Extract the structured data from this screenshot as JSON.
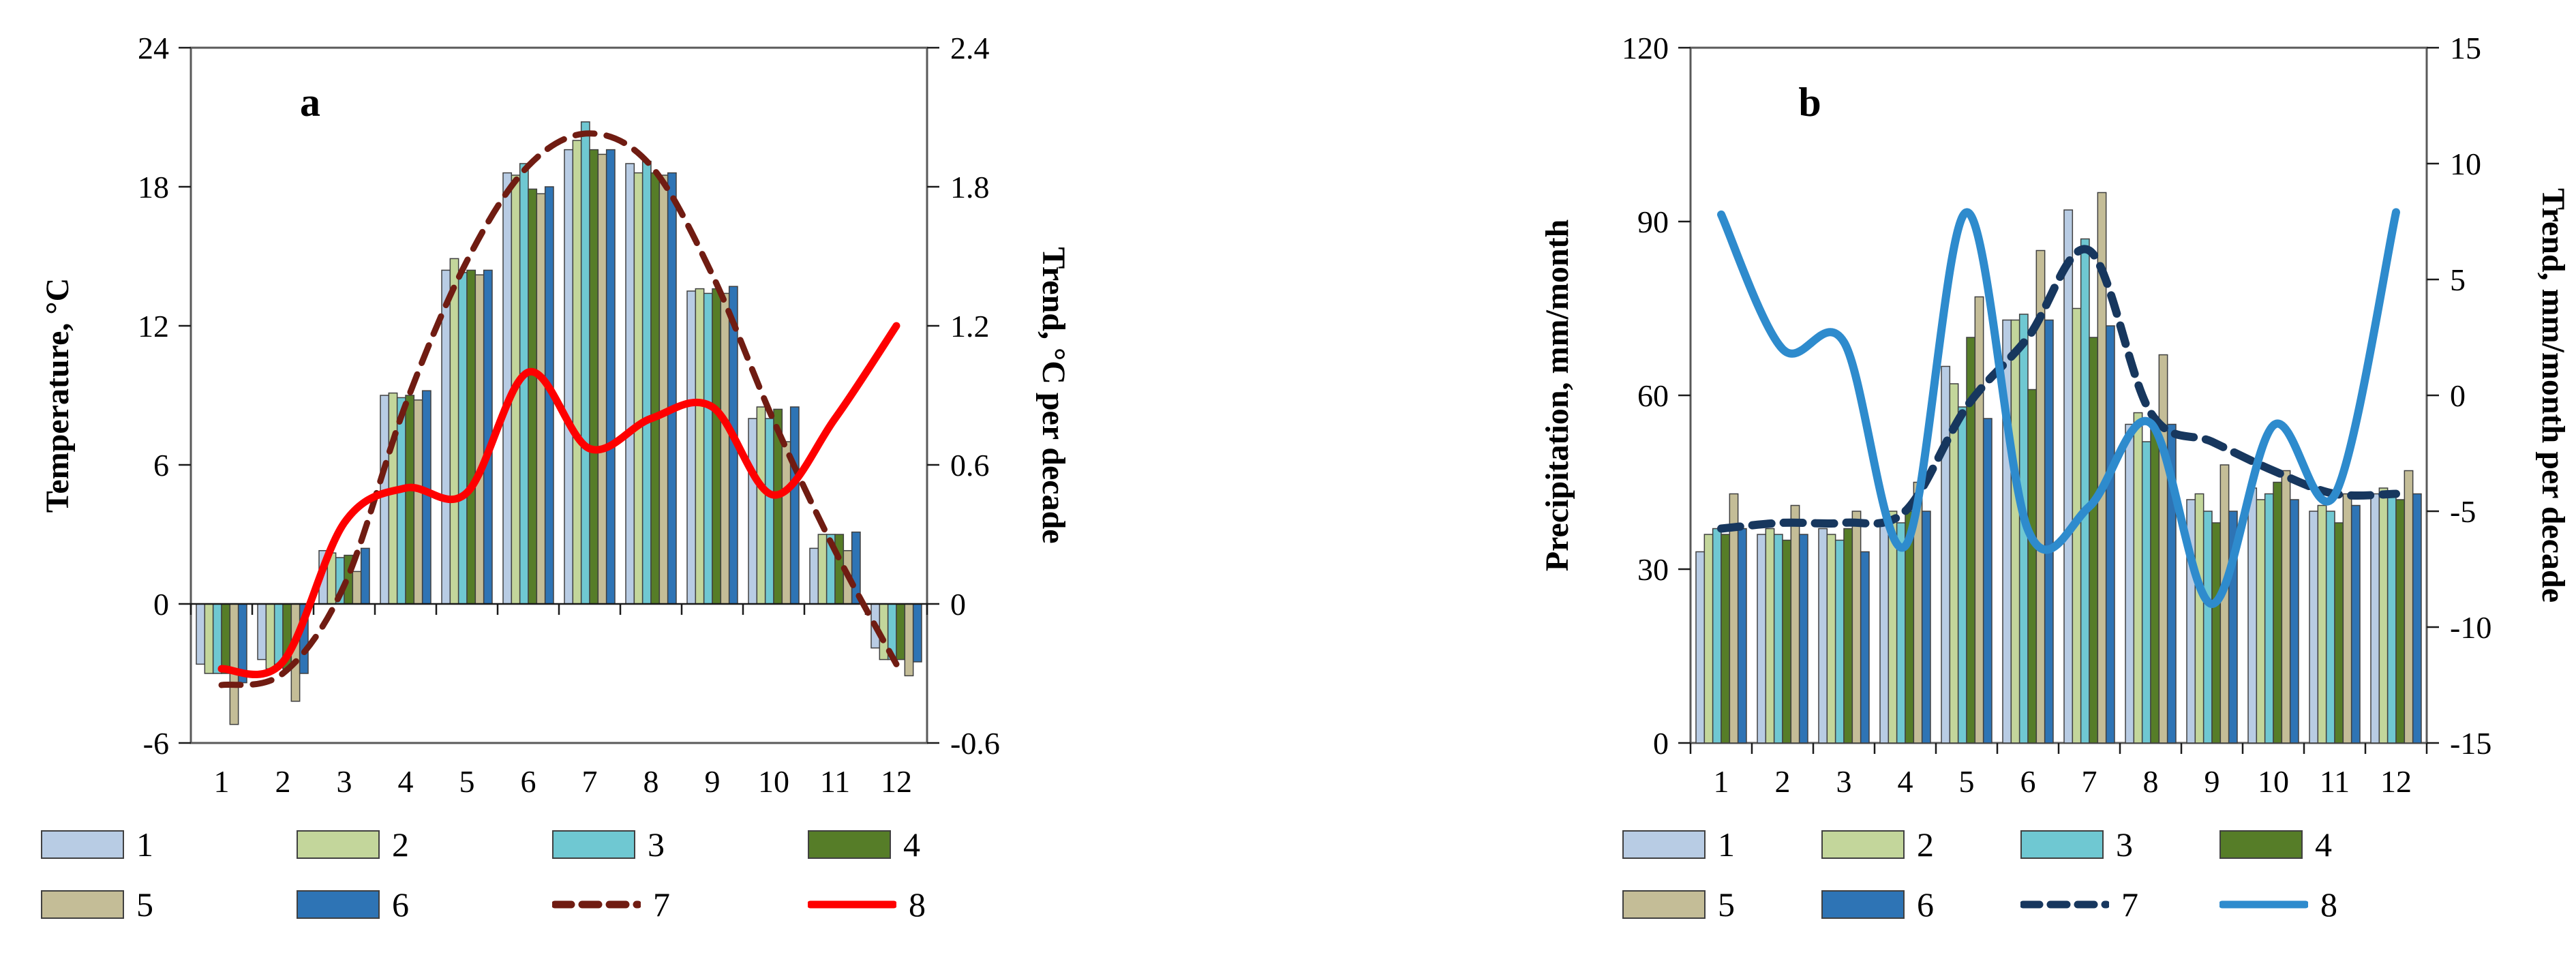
{
  "page": {
    "background": "#ffffff"
  },
  "chart_data": [
    {
      "panel": "a",
      "type": "bar+line",
      "categories": [
        "1",
        "2",
        "3",
        "4",
        "5",
        "6",
        "7",
        "8",
        "9",
        "10",
        "11",
        "12"
      ],
      "left_axis": {
        "label": "Temperature, °C",
        "min": -6,
        "max": 24,
        "ticks": [
          "-6",
          "0",
          "6",
          "12",
          "18",
          "24"
        ]
      },
      "right_axis": {
        "label": "Trend, °C per decade",
        "min": -0.6,
        "max": 2.4,
        "ticks": [
          "-0.6",
          "0",
          "0.6",
          "1.2",
          "1.8",
          "2.4"
        ]
      },
      "bar_series": [
        {
          "name": "1",
          "color": "#b8cce4",
          "values": [
            -2.6,
            -2.4,
            2.3,
            9.0,
            14.4,
            18.6,
            19.6,
            19.0,
            13.5,
            8.0,
            2.4,
            -1.9
          ]
        },
        {
          "name": "2",
          "color": "#c3d69b",
          "values": [
            -3.0,
            -2.8,
            2.2,
            9.1,
            14.9,
            18.5,
            20.0,
            18.6,
            13.6,
            8.5,
            3.0,
            -2.4
          ]
        },
        {
          "name": "3",
          "color": "#6fc8d2",
          "values": [
            -3.0,
            -2.6,
            2.0,
            8.9,
            14.3,
            19.0,
            20.8,
            19.1,
            13.4,
            8.0,
            3.0,
            -2.4
          ]
        },
        {
          "name": "4",
          "color": "#567d28",
          "values": [
            -3.0,
            -2.8,
            2.1,
            9.0,
            14.4,
            17.9,
            19.6,
            18.6,
            13.6,
            8.4,
            3.0,
            -2.4
          ]
        },
        {
          "name": "5",
          "color": "#c4bd97",
          "values": [
            -5.2,
            -4.2,
            1.4,
            8.8,
            14.2,
            17.7,
            19.4,
            18.5,
            13.4,
            7.0,
            2.3,
            -3.1
          ]
        },
        {
          "name": "6",
          "color": "#2e74b5",
          "values": [
            -3.4,
            -3.0,
            2.4,
            9.2,
            14.4,
            18.0,
            19.6,
            18.6,
            13.7,
            8.5,
            3.1,
            -2.5
          ]
        }
      ],
      "line_series": [
        {
          "name": "7",
          "axis": "left",
          "style": "dashed",
          "color": "#701c12",
          "width": 9,
          "values": [
            -3.5,
            -3.0,
            0.8,
            8.6,
            14.8,
            18.9,
            20.3,
            18.9,
            14.2,
            7.9,
            2.3,
            -2.6
          ]
        },
        {
          "name": "8",
          "axis": "right",
          "style": "solid",
          "color": "#fe0000",
          "width": 11,
          "values": [
            -0.28,
            -0.25,
            0.35,
            0.5,
            0.48,
            1.0,
            0.67,
            0.8,
            0.85,
            0.47,
            0.8,
            1.2
          ]
        }
      ],
      "legend": [
        {
          "label": "1",
          "type": "swatch",
          "color": "#b8cce4"
        },
        {
          "label": "2",
          "type": "swatch",
          "color": "#c3d69b"
        },
        {
          "label": "3",
          "type": "swatch",
          "color": "#6fc8d2"
        },
        {
          "label": "4",
          "type": "swatch",
          "color": "#567d28"
        },
        {
          "label": "5",
          "type": "swatch",
          "color": "#c4bd97"
        },
        {
          "label": "6",
          "type": "swatch",
          "color": "#2e74b5"
        },
        {
          "label": "7",
          "type": "dashed-line",
          "color": "#701c12"
        },
        {
          "label": "8",
          "type": "solid-line",
          "color": "#fe0000"
        }
      ]
    },
    {
      "panel": "b",
      "type": "bar+line",
      "categories": [
        "1",
        "2",
        "3",
        "4",
        "5",
        "6",
        "7",
        "8",
        "9",
        "10",
        "11",
        "12"
      ],
      "left_axis": {
        "label": "Precipitation, mm/month",
        "min": 0,
        "max": 120,
        "ticks": [
          "0",
          "30",
          "60",
          "90",
          "120"
        ]
      },
      "right_axis": {
        "label": "Trend, mm/month per decade",
        "min": -15,
        "max": 15,
        "ticks": [
          "-15",
          "-10",
          "-5",
          "0",
          "5",
          "10",
          "15"
        ]
      },
      "bar_series": [
        {
          "name": "1",
          "color": "#b8cce4",
          "values": [
            33,
            36,
            37,
            38,
            65,
            73,
            92,
            55,
            42,
            44,
            40,
            43
          ]
        },
        {
          "name": "2",
          "color": "#c3d69b",
          "values": [
            36,
            37,
            36,
            40,
            62,
            73,
            75,
            57,
            43,
            42,
            41,
            44
          ]
        },
        {
          "name": "3",
          "color": "#6fc8d2",
          "values": [
            37,
            36,
            35,
            38,
            58,
            74,
            87,
            52,
            40,
            43,
            40,
            43
          ]
        },
        {
          "name": "4",
          "color": "#567d28",
          "values": [
            36,
            35,
            37,
            40,
            70,
            61,
            70,
            55,
            38,
            45,
            38,
            42
          ]
        },
        {
          "name": "5",
          "color": "#c4bd97",
          "values": [
            43,
            41,
            40,
            45,
            77,
            85,
            95,
            67,
            48,
            47,
            43,
            47
          ]
        },
        {
          "name": "6",
          "color": "#2e74b5",
          "values": [
            37,
            36,
            33,
            40,
            56,
            73,
            72,
            55,
            40,
            42,
            41,
            43
          ]
        }
      ],
      "line_series": [
        {
          "name": "7",
          "axis": "left",
          "style": "dashed",
          "color": "#17375e",
          "width": 12,
          "values": [
            37,
            38,
            38,
            40,
            58,
            70,
            85,
            57,
            52,
            47,
            43,
            43
          ]
        },
        {
          "name": "8",
          "axis": "right",
          "style": "solid",
          "color": "#2e8bcd",
          "width": 12,
          "values": [
            7.8,
            2.0,
            2.3,
            -6.5,
            7.9,
            -5.8,
            -4.8,
            -1.2,
            -9.0,
            -1.3,
            -4.3,
            7.9
          ]
        }
      ],
      "legend": [
        {
          "label": "1",
          "type": "swatch",
          "color": "#b8cce4"
        },
        {
          "label": "2",
          "type": "swatch",
          "color": "#c3d69b"
        },
        {
          "label": "3",
          "type": "swatch",
          "color": "#6fc8d2"
        },
        {
          "label": "4",
          "type": "swatch",
          "color": "#567d28"
        },
        {
          "label": "5",
          "type": "swatch",
          "color": "#c4bd97"
        },
        {
          "label": "6",
          "type": "swatch",
          "color": "#2e74b5"
        },
        {
          "label": "7",
          "type": "dashed-line",
          "color": "#17375e"
        },
        {
          "label": "8",
          "type": "solid-line",
          "color": "#2e8bcd"
        }
      ]
    }
  ]
}
